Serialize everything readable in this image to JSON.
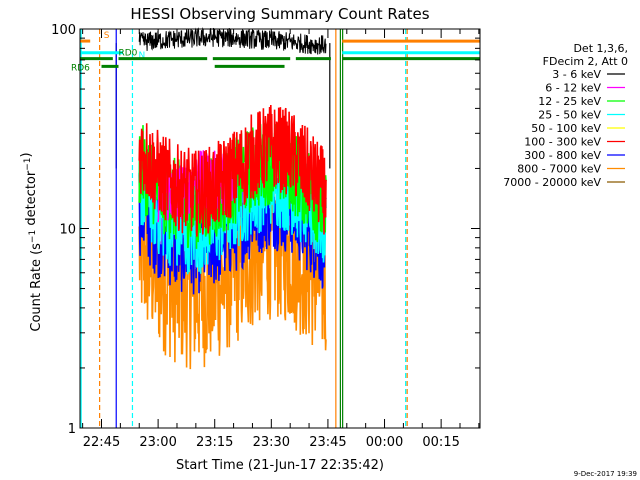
{
  "chart_data": {
    "type": "line",
    "title": "HESSI Observing Summary Count Rates",
    "xlabel": "Start Time (21-Jun-17 22:35:42)",
    "ylabel": "Count Rate (s⁻¹ detector⁻¹)",
    "yscale": "log",
    "ylim": [
      1,
      100
    ],
    "xlim_minutes": [
      -5.7,
      100.3
    ],
    "x_tick_labels": [
      "22:45",
      "23:00",
      "23:15",
      "23:30",
      "23:45",
      "00:00",
      "00:15"
    ],
    "x_tick_minutes": [
      0,
      15,
      30,
      45,
      60,
      75,
      90
    ],
    "y_tick_labels": [
      "1",
      "10",
      "100"
    ],
    "y_tick_values": [
      1,
      10,
      100
    ],
    "legend_header": [
      "Det 1,3,6,",
      "FDecim 2, Att 0"
    ],
    "legend_placement": "right",
    "series": [
      {
        "name": "3 - 6 keV",
        "color": "#000000",
        "x": [
          10,
          20,
          30,
          40,
          50,
          55,
          59.5
        ],
        "values": [
          86,
          89,
          91,
          89,
          86,
          84,
          83
        ]
      },
      {
        "name": "6 - 12 keV",
        "color": "#ff00ff",
        "x": [
          15,
          20,
          25,
          30,
          35
        ],
        "values": [
          15,
          15,
          17.5,
          17.5,
          17
        ]
      },
      {
        "name": "12 - 25 keV",
        "color": "#00ff00",
        "x": [
          10,
          15,
          20,
          25,
          30,
          35,
          40,
          45,
          50,
          55,
          59.5
        ],
        "values": [
          21,
          16,
          13.5,
          13,
          14,
          17,
          20,
          22,
          20,
          16,
          12
        ]
      },
      {
        "name": "25 - 50 keV",
        "color": "#00ffff",
        "x": [
          10,
          15,
          20,
          25,
          30,
          35,
          40,
          45,
          50,
          55,
          59.5
        ],
        "values": [
          17,
          12,
          10,
          9.6,
          10.5,
          12.5,
          15,
          17,
          15.5,
          12.5,
          10
        ]
      },
      {
        "name": "50 - 100 keV",
        "color": "#ffff00",
        "x": [],
        "values": []
      },
      {
        "name": "100 - 300 keV",
        "color": "#ff0000",
        "x": [
          10,
          15,
          20,
          25,
          30,
          35,
          40,
          45,
          50,
          55,
          59.5
        ],
        "values": [
          25,
          19,
          16,
          15,
          16,
          19,
          23,
          26,
          24,
          19,
          15
        ]
      },
      {
        "name": "300 - 800 keV",
        "color": "#0000ff",
        "x": [
          10,
          15,
          20,
          25,
          30,
          35,
          40,
          45,
          50,
          55,
          59.5
        ],
        "values": [
          13,
          10,
          8.4,
          8.2,
          8.8,
          10.3,
          12.5,
          14,
          13,
          10.5,
          8.3
        ]
      },
      {
        "name": "800 - 7000 keV",
        "color": "#ff8c00",
        "x": [
          10,
          15,
          20,
          25,
          30,
          35,
          40,
          45,
          50,
          55,
          59.5
        ],
        "values": [
          7.8,
          5.9,
          4.9,
          4.6,
          5,
          6,
          7.3,
          8.4,
          7.8,
          6.1,
          5.2
        ]
      },
      {
        "name": "7000 - 20000 keV",
        "color": "#8b5a00",
        "x": [],
        "values": []
      }
    ],
    "attenuator_bars": [
      {
        "label": "S",
        "color": "#ff8000",
        "segments": [
          [
            -5.7,
            -3.0
          ],
          [
            63.8,
            100.3
          ]
        ],
        "value": 87
      },
      {
        "label": "N",
        "color": "#00ffff",
        "segments": [
          [
            -5.7,
            5.7
          ],
          [
            63.8,
            100.3
          ]
        ],
        "value": 76
      },
      {
        "label": "RD0",
        "color": "#008000",
        "segments": [
          [
            -5.7,
            3.0
          ],
          [
            4.5,
            28.0
          ],
          [
            29.5,
            50.0
          ],
          [
            51.5,
            60.8
          ],
          [
            63.8,
            100.3
          ]
        ],
        "value": 71
      },
      {
        "label": "RD6",
        "color": "#008000",
        "segments": [
          [
            0,
            4.5
          ],
          [
            30.0,
            48.5
          ]
        ],
        "value": 65
      }
    ],
    "vertical_markers": [
      {
        "minute": -5.4,
        "color": "#00ffff",
        "style": "solid"
      },
      {
        "minute": -0.5,
        "color": "#ff8000",
        "style": "dashed"
      },
      {
        "minute": 3.9,
        "color": "#000000",
        "style": "solid"
      },
      {
        "minute": 3.9,
        "color": "#0000ff",
        "style": "solid"
      },
      {
        "minute": 8.2,
        "color": "#00ffff",
        "style": "dashed"
      },
      {
        "minute": 60.5,
        "color": "#000000",
        "style": "solid"
      },
      {
        "minute": 62.1,
        "color": "#ff8000",
        "style": "solid"
      },
      {
        "minute": 63.3,
        "color": "#008000",
        "style": "solid"
      },
      {
        "minute": 63.9,
        "color": "#008000",
        "style": "solid"
      },
      {
        "minute": 80.6,
        "color": "#00ffff",
        "style": "dashed"
      },
      {
        "minute": 81.0,
        "color": "#ff8000",
        "style": "dashed"
      }
    ],
    "grid": false
  },
  "footer_date": "9-Dec-2017 19:39"
}
